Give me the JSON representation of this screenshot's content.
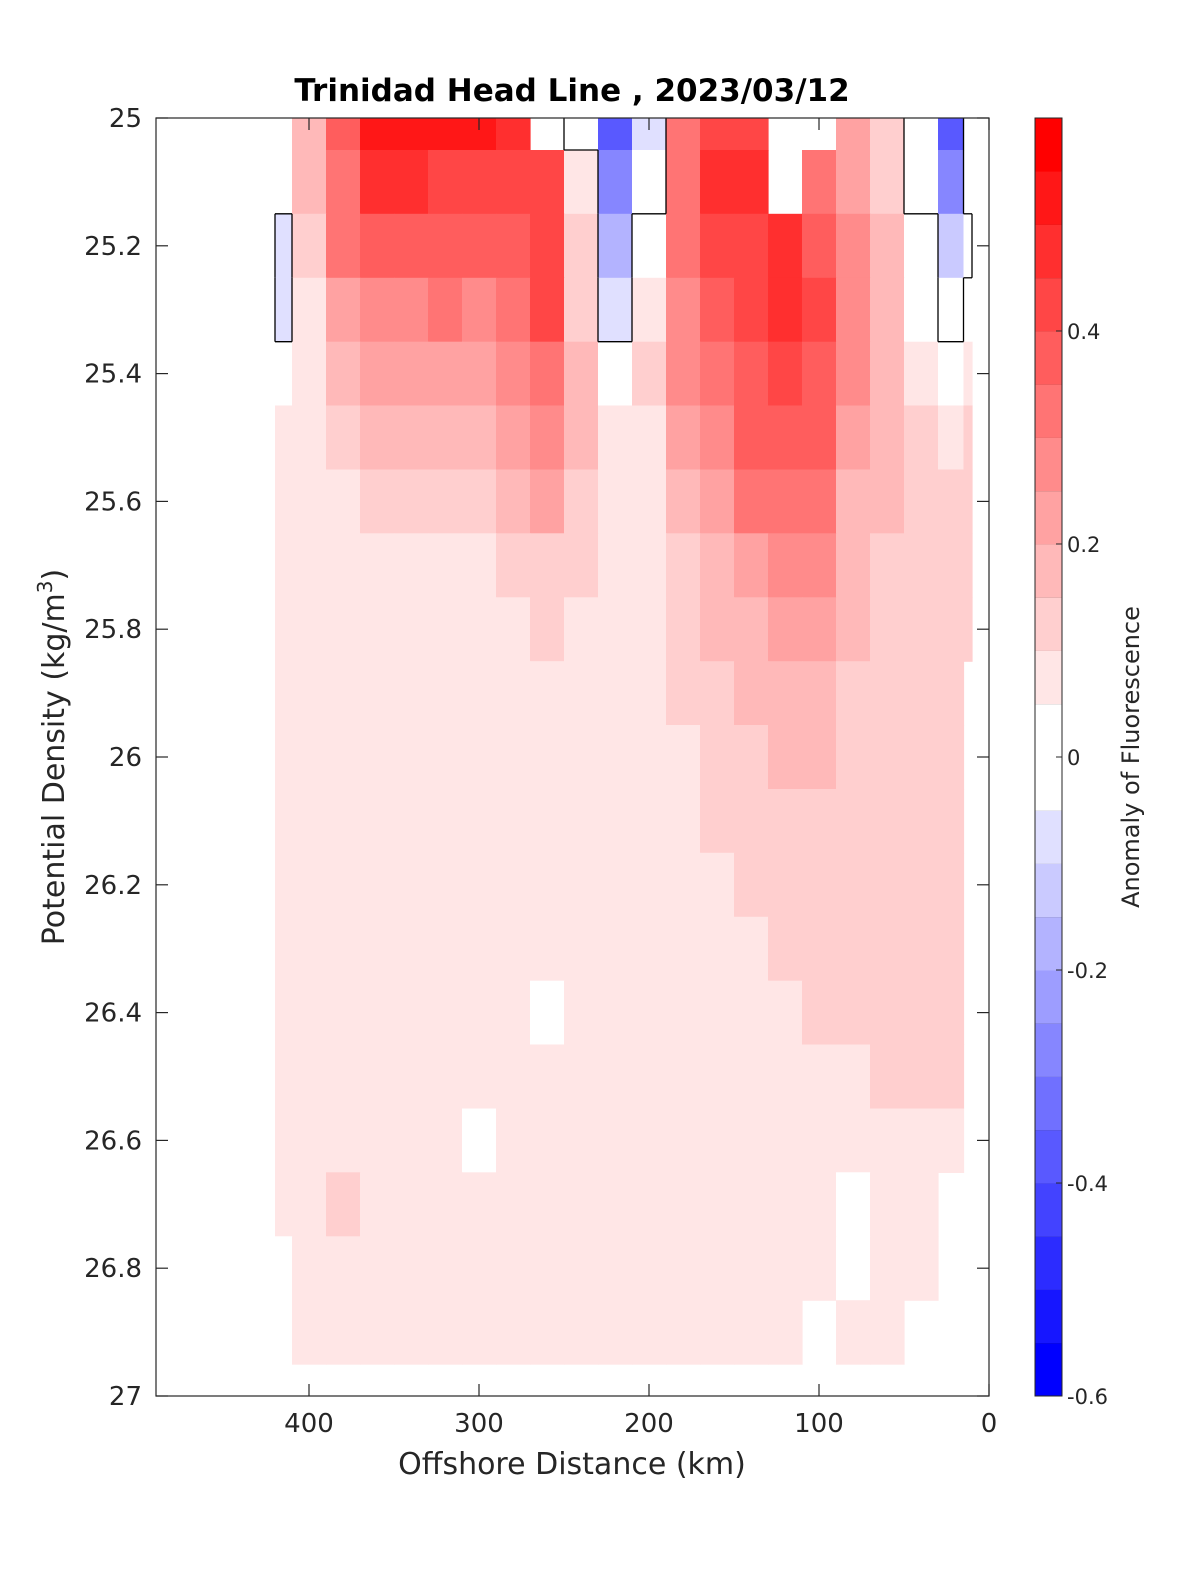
{
  "chart_data": {
    "type": "heatmap",
    "title": "Trinidad Head Line , 2023/03/12",
    "xlabel": "Offshore Distance (km)",
    "ylabel_main": "Potential Density (kg/m",
    "ylabel_sup": "3",
    "ylabel_end": ")",
    "xlim": [
      490,
      0
    ],
    "ylim": [
      25,
      27
    ],
    "y_reversed": true,
    "xticks": [
      400,
      300,
      200,
      100,
      0
    ],
    "yticks": [
      25,
      25.2,
      25.4,
      25.6,
      25.8,
      26,
      26.2,
      26.4,
      26.6,
      26.8,
      27
    ],
    "ytick_labels": [
      "25",
      "25.2",
      "25.4",
      "25.6",
      "25.8",
      "26",
      "26.2",
      "26.4",
      "26.6",
      "26.8",
      "27"
    ],
    "colorbar": {
      "label": "Anomaly of Fluorescence",
      "clim": [
        -0.6,
        0.6
      ],
      "ticks": [
        -0.6,
        -0.4,
        -0.2,
        0,
        0.2,
        0.4
      ],
      "tick_labels": [
        "-0.6",
        "-0.4",
        "-0.2",
        "0",
        "0.2",
        "0.4"
      ],
      "levels": [
        -0.6,
        -0.55,
        -0.5,
        -0.45,
        -0.4,
        -0.35,
        -0.3,
        -0.25,
        -0.2,
        -0.15,
        -0.1,
        -0.05,
        0.05,
        0.1,
        0.15,
        0.2,
        0.25,
        0.3,
        0.35,
        0.4,
        0.45,
        0.5,
        0.55,
        0.6
      ],
      "colors": [
        "#0000ff",
        "#1616ff",
        "#2c2cff",
        "#4343ff",
        "#5959ff",
        "#7070ff",
        "#8686ff",
        "#9d9dff",
        "#b3b3ff",
        "#cacaff",
        "#e0e0ff",
        "#ffffff",
        "#ffe6e6",
        "#ffcfcf",
        "#ffb9b9",
        "#ffa2a2",
        "#ff8b8b",
        "#ff7474",
        "#ff5d5d",
        "#ff4646",
        "#ff2f2f",
        "#ff1717",
        "#ff0000"
      ]
    },
    "grid": false,
    "stations_km": [
      420,
      400,
      380,
      360,
      340,
      320,
      300,
      280,
      260,
      240,
      220,
      200,
      180,
      160,
      140,
      120,
      100,
      80,
      60,
      40,
      20,
      10
    ],
    "density_levels": [
      25.0,
      25.1,
      25.2,
      25.3,
      25.4,
      25.5,
      25.6,
      25.7,
      25.8,
      25.9,
      26.0,
      26.1,
      26.2,
      26.3,
      26.4,
      26.5,
      26.6,
      26.7,
      26.8,
      26.9
    ],
    "anomaly_values": [
      [
        0.03,
        0.18,
        0.38,
        0.5,
        0.53,
        0.5,
        0.5,
        0.46,
        null,
        -0.02,
        -0.4,
        -0.1,
        0.3,
        0.42,
        0.44,
        null,
        null,
        0.2,
        0.12,
        -0.05,
        -0.38,
        null
      ],
      [
        0.0,
        0.15,
        0.33,
        0.45,
        0.47,
        0.44,
        0.44,
        0.4,
        0.42,
        0.05,
        -0.3,
        -0.05,
        0.3,
        0.45,
        0.46,
        null,
        0.34,
        0.22,
        0.14,
        -0.02,
        -0.28,
        null
      ],
      [
        -0.07,
        0.12,
        0.3,
        0.38,
        0.39,
        0.37,
        0.35,
        0.36,
        0.44,
        0.1,
        -0.18,
        0.03,
        0.3,
        0.4,
        0.43,
        0.47,
        0.38,
        0.25,
        0.15,
        0.0,
        -0.15,
        -0.02
      ],
      [
        -0.07,
        0.08,
        0.24,
        0.29,
        0.29,
        0.3,
        0.28,
        0.32,
        0.4,
        0.14,
        -0.08,
        0.08,
        0.28,
        0.35,
        0.4,
        0.45,
        0.4,
        0.26,
        0.16,
        0.03,
        -0.05,
        0.02
      ],
      [
        0.02,
        0.06,
        0.18,
        0.21,
        0.22,
        0.22,
        0.21,
        0.28,
        0.33,
        0.16,
        0.0,
        0.1,
        0.25,
        0.32,
        0.38,
        0.42,
        0.38,
        0.25,
        0.17,
        0.07,
        0.02,
        0.07
      ],
      [
        0.06,
        0.06,
        0.13,
        0.16,
        0.15,
        0.16,
        0.16,
        0.22,
        0.26,
        0.15,
        0.05,
        0.09,
        0.2,
        0.28,
        0.35,
        0.38,
        0.35,
        0.22,
        0.16,
        0.12,
        0.08,
        0.12
      ],
      [
        0.08,
        0.07,
        0.09,
        0.11,
        0.1,
        0.11,
        0.12,
        0.16,
        0.21,
        0.13,
        0.08,
        0.08,
        0.16,
        0.24,
        0.3,
        0.32,
        0.3,
        0.19,
        0.15,
        0.13,
        0.1,
        0.13
      ],
      [
        0.07,
        0.07,
        0.08,
        0.08,
        0.08,
        0.08,
        0.09,
        0.11,
        0.14,
        0.11,
        0.09,
        0.08,
        0.13,
        0.19,
        0.24,
        0.28,
        0.25,
        0.17,
        0.14,
        0.13,
        0.11,
        0.12
      ],
      [
        0.07,
        0.07,
        0.07,
        0.07,
        0.06,
        0.07,
        0.08,
        0.09,
        0.1,
        0.09,
        0.09,
        0.08,
        0.11,
        0.15,
        0.19,
        0.23,
        0.22,
        0.15,
        0.13,
        0.13,
        0.11,
        0.11
      ],
      [
        0.07,
        0.07,
        0.07,
        0.07,
        0.07,
        0.07,
        0.08,
        0.08,
        0.08,
        0.08,
        0.08,
        0.08,
        0.1,
        0.13,
        0.16,
        0.19,
        0.19,
        0.14,
        0.12,
        0.12,
        0.11,
        null
      ],
      [
        0.07,
        0.07,
        0.07,
        0.07,
        0.07,
        0.07,
        0.07,
        0.07,
        0.07,
        0.07,
        0.07,
        0.07,
        0.09,
        0.11,
        0.13,
        0.15,
        0.16,
        0.13,
        0.12,
        0.12,
        0.11,
        null
      ],
      [
        0.07,
        0.07,
        0.07,
        0.07,
        0.07,
        0.07,
        0.07,
        0.07,
        0.07,
        0.07,
        0.07,
        0.07,
        0.08,
        0.1,
        0.11,
        0.13,
        0.14,
        0.12,
        0.11,
        0.11,
        0.1,
        null
      ],
      [
        0.07,
        0.07,
        0.07,
        0.07,
        0.07,
        0.07,
        0.07,
        0.07,
        0.07,
        0.07,
        0.07,
        0.07,
        0.08,
        0.09,
        0.1,
        0.11,
        0.12,
        0.11,
        0.11,
        0.11,
        0.1,
        null
      ],
      [
        0.07,
        0.07,
        0.07,
        0.07,
        0.07,
        0.07,
        0.07,
        0.07,
        0.07,
        0.07,
        0.07,
        0.07,
        0.07,
        0.08,
        0.09,
        0.1,
        0.11,
        0.11,
        0.11,
        0.11,
        0.1,
        null
      ],
      [
        0.07,
        0.07,
        0.07,
        0.07,
        0.07,
        0.07,
        0.07,
        0.07,
        0.04,
        0.07,
        0.07,
        0.07,
        0.07,
        0.08,
        0.08,
        0.09,
        0.1,
        0.1,
        0.11,
        0.11,
        0.1,
        null
      ],
      [
        0.07,
        0.07,
        0.07,
        0.07,
        0.07,
        0.07,
        0.07,
        0.07,
        0.07,
        0.07,
        0.07,
        0.07,
        0.07,
        0.07,
        0.08,
        0.08,
        0.09,
        0.09,
        0.1,
        0.11,
        0.1,
        null
      ],
      [
        0.07,
        0.07,
        0.08,
        0.07,
        0.07,
        0.07,
        0.04,
        0.07,
        0.07,
        0.07,
        0.07,
        0.07,
        0.07,
        0.07,
        0.07,
        0.08,
        0.08,
        0.06,
        0.08,
        0.09,
        0.09,
        null
      ],
      [
        0.07,
        0.07,
        0.1,
        0.09,
        0.07,
        0.07,
        0.07,
        0.07,
        0.07,
        0.07,
        0.07,
        0.07,
        0.07,
        0.07,
        0.07,
        0.07,
        0.07,
        0.02,
        0.06,
        0.08,
        null,
        null
      ],
      [
        0.04,
        0.07,
        0.09,
        0.08,
        0.07,
        0.07,
        0.07,
        0.07,
        0.07,
        0.07,
        0.07,
        0.07,
        0.07,
        0.07,
        0.07,
        0.07,
        0.07,
        0.02,
        0.06,
        0.07,
        null,
        null
      ],
      [
        null,
        0.05,
        0.08,
        0.07,
        0.07,
        0.07,
        0.07,
        0.07,
        0.07,
        0.07,
        0.07,
        0.07,
        0.07,
        0.07,
        0.07,
        0.07,
        null,
        0.06,
        0.07,
        null,
        null,
        null
      ]
    ]
  }
}
